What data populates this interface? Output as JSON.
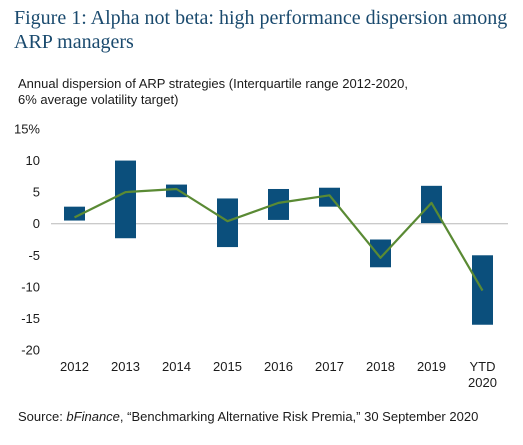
{
  "title": "Figure 1: Alpha not beta: high performance dispersion among ARP managers",
  "subtitle_line1": "Annual dispersion of ARP strategies (Interquartile range 2012-2020,",
  "subtitle_line2": "6% average volatility target)",
  "source": {
    "prefix": "Source: ",
    "italic": "bFinance",
    "suffix": ", “Benchmarking Alternative Risk Premia,” 30 September 2020"
  },
  "colors": {
    "bar": "#0b4f7c",
    "line": "#5a8a34",
    "title": "#1a4a6e"
  },
  "chart_data": {
    "type": "bar",
    "categories": [
      "2012",
      "2013",
      "2014",
      "2015",
      "2016",
      "2017",
      "2018",
      "2019",
      "YTD 2020"
    ],
    "category_labels": [
      [
        "2012"
      ],
      [
        "2013"
      ],
      [
        "2014"
      ],
      [
        "2015"
      ],
      [
        "2016"
      ],
      [
        "2017"
      ],
      [
        "2018"
      ],
      [
        "2019"
      ],
      [
        "YTD",
        "2020"
      ]
    ],
    "series": [
      {
        "type": "range_bar",
        "low": [
          0.5,
          -2.3,
          4.2,
          -3.7,
          0.6,
          2.7,
          -6.9,
          0.1,
          -16.0
        ],
        "high": [
          2.7,
          10.0,
          6.2,
          4.0,
          5.5,
          5.7,
          -2.5,
          6.0,
          -5.0
        ]
      },
      {
        "type": "line",
        "values": [
          1.0,
          5.0,
          5.5,
          0.4,
          3.3,
          4.5,
          -5.4,
          3.3,
          -10.6
        ]
      }
    ],
    "ylim": [
      -20,
      15
    ],
    "yticks": [
      15,
      10,
      5,
      0,
      -5,
      -10,
      -15,
      -20
    ],
    "ytick_labels": [
      "15%",
      "10",
      "5",
      "0",
      "-5",
      "-10",
      "-15",
      "-20"
    ],
    "grid": false
  }
}
